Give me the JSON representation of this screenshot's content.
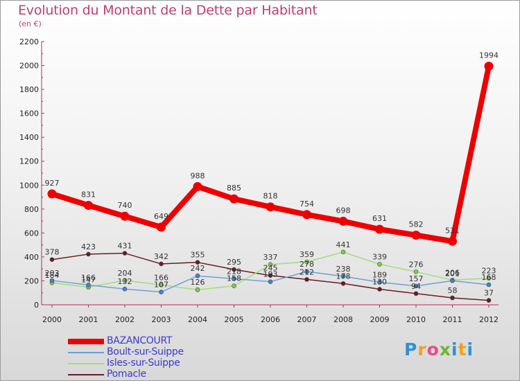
{
  "header": {
    "title": "Evolution du Montant de la Dette par Habitant",
    "unit": "(en €)"
  },
  "brand": {
    "logo_letters": [
      "P",
      "r",
      "o",
      "x",
      "i",
      "t",
      "i"
    ]
  },
  "chart_data": {
    "type": "line",
    "title": "Evolution du Montant de la Dette par Habitant",
    "subtitle": "(en €)",
    "xlabel": "",
    "ylabel": "",
    "ylim": [
      0,
      2200
    ],
    "yticks": [
      0,
      200,
      400,
      600,
      800,
      1000,
      1200,
      1400,
      1600,
      1800,
      2000,
      2200
    ],
    "x": [
      "2000",
      "2001",
      "2002",
      "2003",
      "2004",
      "2005",
      "2006",
      "2007",
      "2008",
      "2009",
      "2010",
      "2011",
      "2012"
    ],
    "grid": false,
    "legend_position": "bottom-left",
    "series": [
      {
        "name": "Pomacle",
        "color": "#6b1a22",
        "marker": "#6b1a22",
        "values": [
          378,
          423,
          431,
          342,
          355,
          295,
          245,
          212,
          178,
          130,
          94,
          58,
          37
        ]
      },
      {
        "name": "Isles-sur-Suippe",
        "color": "#9fde7a",
        "marker": "#7ccc4c",
        "values": [
          184,
          147,
          204,
          166,
          126,
          158,
          337,
          359,
          441,
          339,
          276,
          206,
          223
        ]
      },
      {
        "name": "Boult-sur-Suippe",
        "color": "#6fa0d0",
        "marker": "#3a86cf",
        "values": [
          203,
          166,
          132,
          107,
          242,
          218,
          193,
          278,
          238,
          189,
          157,
          201,
          168
        ]
      },
      {
        "name": "BAZANCOURT",
        "color": "#ef0000",
        "marker": "#ef0000",
        "values": [
          927,
          831,
          740,
          649,
          988,
          885,
          818,
          754,
          698,
          631,
          582,
          531,
          1994
        ]
      }
    ]
  },
  "legend": {
    "items": [
      {
        "label": "BAZANCOURT",
        "color": "#ef0000",
        "thickness": 8
      },
      {
        "label": "Boult-sur-Suippe",
        "color": "#6fa0d0",
        "thickness": 2
      },
      {
        "label": "Isles-sur-Suippe",
        "color": "#9fde7a",
        "thickness": 2
      },
      {
        "label": "Pomacle",
        "color": "#6b1a22",
        "thickness": 2
      }
    ]
  }
}
